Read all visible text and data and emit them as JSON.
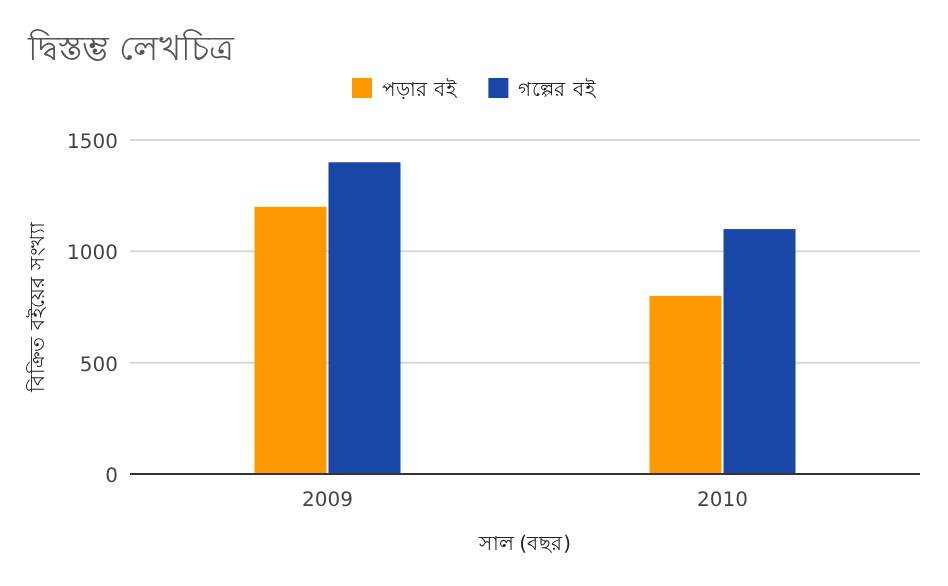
{
  "chart_data": {
    "type": "bar",
    "title": "দ্বিস্তম্ভ লেখচিত্র",
    "xlabel": "সাল (বছর)",
    "ylabel": "বিক্রিত বইয়ের সংখ্যা",
    "categories": [
      "2009",
      "2010"
    ],
    "series": [
      {
        "name": "পড়ার বই",
        "color": "#ff9900",
        "values": [
          1200,
          800
        ]
      },
      {
        "name": "গল্পের বই",
        "color": "#1847a8",
        "values": [
          1400,
          1100
        ]
      }
    ],
    "ylim": [
      0,
      1500
    ],
    "yticks": [
      0,
      500,
      1000,
      1500
    ],
    "grid": "y",
    "legend": "top"
  }
}
